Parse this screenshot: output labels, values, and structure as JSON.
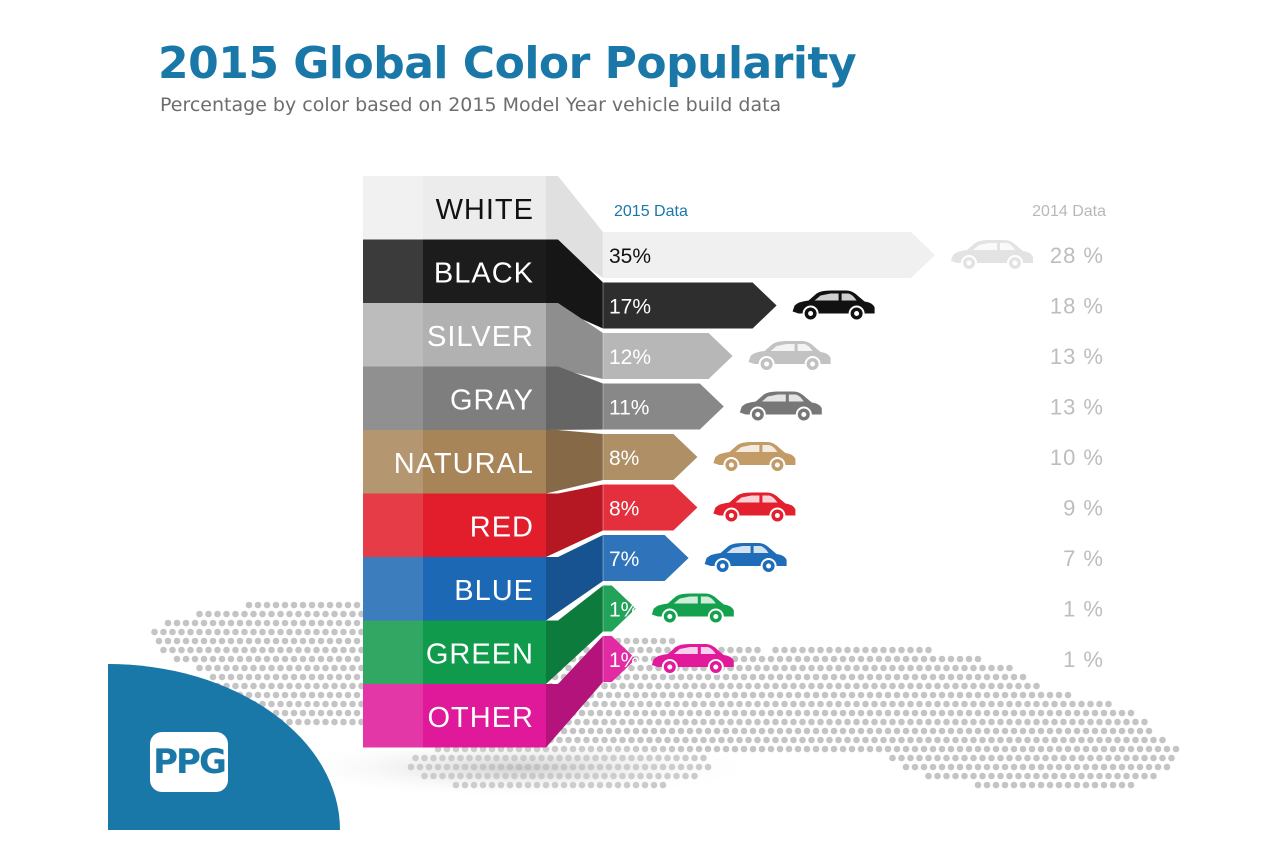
{
  "header": {
    "title": "2015 Global Color Popularity",
    "subtitle": "Percentage by color based on 2015 Model Year vehicle build data"
  },
  "logo": {
    "text": "PPG"
  },
  "chart_data": {
    "type": "bar",
    "orientation": "horizontal",
    "categories": [
      "WHITE",
      "BLACK",
      "SILVER",
      "GRAY",
      "NATURAL",
      "RED",
      "BLUE",
      "GREEN",
      "OTHER"
    ],
    "series": [
      {
        "name": "2015 Data",
        "values": [
          35,
          17,
          12,
          11,
          8,
          8,
          7,
          1,
          1
        ],
        "labels": [
          "35%",
          "17%",
          "12%",
          "11%",
          "8%",
          "8%",
          "7%",
          "1%",
          "1%"
        ]
      },
      {
        "name": "2014 Data",
        "values": [
          28,
          18,
          13,
          13,
          10,
          9,
          7,
          1,
          1
        ],
        "labels": [
          "28 %",
          "18 %",
          "13 %",
          "13 %",
          "10 %",
          "9 %",
          "7 %",
          "1 %",
          "1 %"
        ]
      }
    ],
    "colors": [
      "#ececec",
      "#1c1c1c",
      "#b1b1b1",
      "#7e7e7e",
      "#a88559",
      "#e21d2c",
      "#1d68b4",
      "#109a4b",
      "#e0189a"
    ],
    "car_colors": [
      "#e3e3e3",
      "#111111",
      "#c2c2c2",
      "#777777",
      "#c29b67",
      "#e3202e",
      "#1f6db9",
      "#14a14e",
      "#e2199a"
    ],
    "accent": "#1a78a8",
    "icons": [
      "car-icon"
    ],
    "map": "world-map-dots"
  }
}
